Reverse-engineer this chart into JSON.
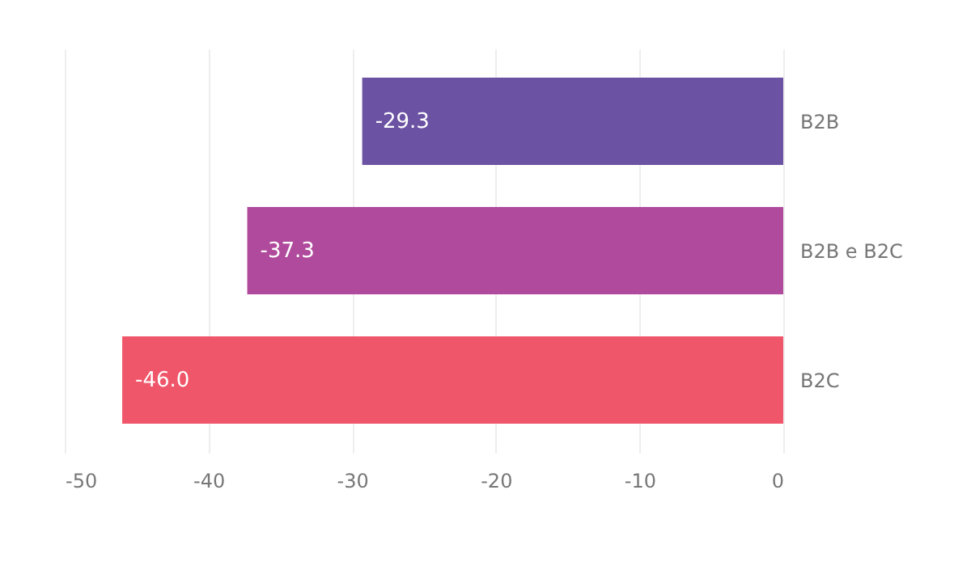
{
  "chart_data": {
    "type": "bar",
    "orientation": "horizontal",
    "categories": [
      "B2B",
      "B2B e B2C",
      "B2C"
    ],
    "values": [
      -29.3,
      -37.3,
      -46.0
    ],
    "colors": [
      "#6b52a3",
      "#b04a9c",
      "#f0566a"
    ],
    "value_labels": [
      "-29.3",
      "-37.3",
      "-46.0"
    ],
    "xlim": [
      -50,
      0
    ],
    "xticks": [
      -50,
      -40,
      -30,
      -20,
      -10,
      0
    ],
    "grid": "x"
  }
}
